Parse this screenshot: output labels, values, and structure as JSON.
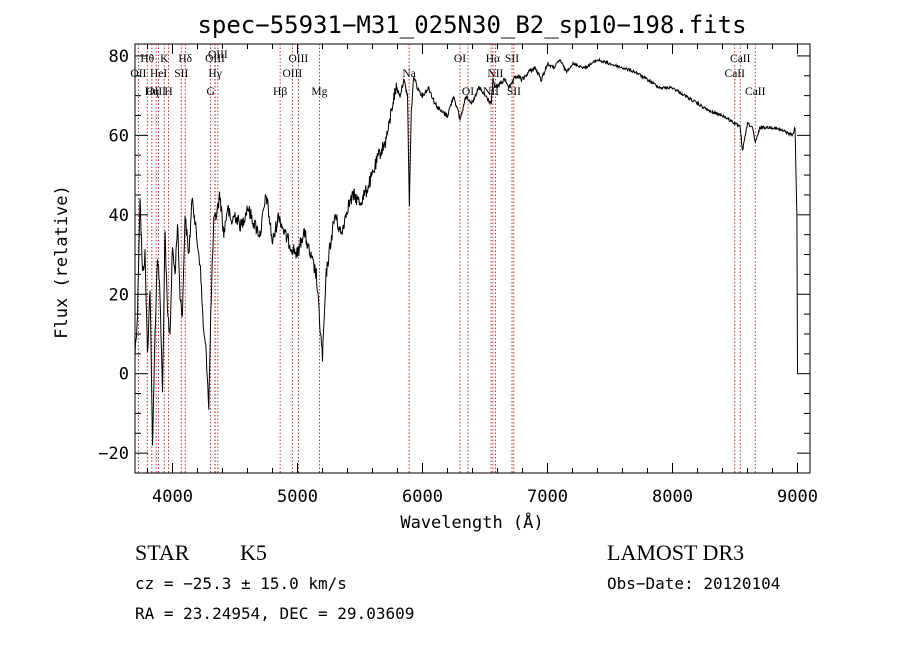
{
  "chart_data": {
    "type": "line",
    "title": "spec−55931−M31_025N30_B2_sp10−198.fits",
    "xlabel": "Wavelength (Å)",
    "ylabel": "Flux (relative)",
    "xlim": [
      3700,
      9100
    ],
    "ylim": [
      -25,
      83
    ],
    "x_ticks": [
      4000,
      5000,
      6000,
      7000,
      8000,
      9000
    ],
    "y_ticks": [
      -20,
      0,
      20,
      40,
      60,
      80
    ],
    "x_minor_step": 200,
    "y_minor_step": 5,
    "series": [
      {
        "name": "flux",
        "color": "#000000",
        "x": [
          3700,
          3720,
          3740,
          3760,
          3780,
          3800,
          3820,
          3840,
          3860,
          3880,
          3900,
          3920,
          3940,
          3960,
          3980,
          4000,
          4020,
          4040,
          4060,
          4080,
          4100,
          4130,
          4160,
          4190,
          4220,
          4250,
          4270,
          4290,
          4310,
          4330,
          4350,
          4380,
          4410,
          4440,
          4470,
          4500,
          4550,
          4600,
          4650,
          4700,
          4750,
          4800,
          4850,
          4900,
          4950,
          5000,
          5050,
          5100,
          5150,
          5180,
          5200,
          5230,
          5260,
          5300,
          5350,
          5400,
          5450,
          5500,
          5550,
          5600,
          5650,
          5700,
          5730,
          5760,
          5790,
          5820,
          5850,
          5880,
          5895,
          5910,
          5930,
          5960,
          6000,
          6050,
          6100,
          6150,
          6200,
          6250,
          6300,
          6350,
          6400,
          6450,
          6500,
          6550,
          6563,
          6580,
          6620,
          6660,
          6700,
          6750,
          6800,
          6850,
          6900,
          6950,
          7000,
          7050,
          7100,
          7150,
          7200,
          7300,
          7400,
          7500,
          7600,
          7700,
          7800,
          7900,
          8000,
          8100,
          8200,
          8300,
          8400,
          8450,
          8500,
          8542,
          8560,
          8600,
          8640,
          8662,
          8700,
          8800,
          8900,
          8960,
          8980,
          8995,
          9000
        ],
        "values": [
          5,
          15,
          45,
          25,
          30,
          5,
          22,
          -18,
          10,
          30,
          20,
          -5,
          35,
          15,
          10,
          32,
          25,
          38,
          20,
          15,
          40,
          30,
          45,
          35,
          28,
          10,
          5,
          -8,
          20,
          38,
          40,
          45,
          35,
          42,
          38,
          40,
          37,
          42,
          38,
          35,
          45,
          33,
          40,
          35,
          32,
          30,
          36,
          30,
          25,
          12,
          4,
          25,
          32,
          40,
          35,
          42,
          45,
          43,
          46,
          50,
          55,
          58,
          62,
          68,
          72,
          70,
          74,
          70,
          42,
          66,
          75,
          72,
          70,
          72,
          68,
          66,
          65,
          70,
          64,
          70,
          68,
          72,
          70,
          68,
          74,
          72,
          73,
          74,
          72,
          75,
          74,
          76,
          77,
          74,
          78,
          77,
          79,
          76,
          78,
          77,
          79,
          78,
          77,
          76,
          74,
          72,
          72,
          70,
          68,
          66,
          65,
          64,
          63,
          62,
          56,
          63,
          62,
          58,
          62,
          62,
          61,
          60,
          62,
          40,
          0
        ]
      }
    ],
    "lines": [
      {
        "name": "Hθ",
        "x": 3798,
        "row": 1
      },
      {
        "name": "Hη",
        "x": 3835,
        "row": 3
      },
      {
        "name": "OII",
        "x": 3727,
        "row": 2
      },
      {
        "name": "OIII",
        "x": 3869,
        "row": 3
      },
      {
        "name": "HeI",
        "x": 3889,
        "row": 2
      },
      {
        "name": "K",
        "x": 3934,
        "row": 1
      },
      {
        "name": "H",
        "x": 3968,
        "row": 3
      },
      {
        "name": "SII",
        "x": 4070,
        "row": 2
      },
      {
        "name": "Hδ",
        "x": 4102,
        "row": 1
      },
      {
        "name": "G",
        "x": 4305,
        "row": 3
      },
      {
        "name": "OIII",
        "x": 4340,
        "row": 1
      },
      {
        "name": "Hγ",
        "x": 4341,
        "row": 2
      },
      {
        "name": "OIII",
        "x": 4363,
        "row": 0
      },
      {
        "name": "Hβ",
        "x": 4861,
        "row": 3
      },
      {
        "name": "OIII",
        "x": 4959,
        "row": 2
      },
      {
        "name": "OIII",
        "x": 5007,
        "row": 1
      },
      {
        "name": "Mg",
        "x": 5175,
        "row": 3
      },
      {
        "name": "Na",
        "x": 5893,
        "row": 2
      },
      {
        "name": "OI",
        "x": 6300,
        "row": 1
      },
      {
        "name": "OI",
        "x": 6364,
        "row": 3
      },
      {
        "name": "Hα",
        "x": 6563,
        "row": 1
      },
      {
        "name": "NII",
        "x": 6548,
        "row": 3
      },
      {
        "name": "NII",
        "x": 6583,
        "row": 2
      },
      {
        "name": "SII",
        "x": 6716,
        "row": 1
      },
      {
        "name": "SII",
        "x": 6731,
        "row": 3
      },
      {
        "name": "CaII",
        "x": 8498,
        "row": 2
      },
      {
        "name": "CaII",
        "x": 8542,
        "row": 1
      },
      {
        "name": "CaII",
        "x": 8662,
        "row": 3
      }
    ],
    "line_color": "#b40000"
  },
  "footer": {
    "object_class": "STAR",
    "subclass": "K5",
    "survey": "LAMOST DR3",
    "cz": "cz = −25.3 ± 15.0 km/s",
    "obs_date": "Obs−Date: 20120104",
    "coords": "RA =  23.24954, DEC =  29.03609"
  }
}
